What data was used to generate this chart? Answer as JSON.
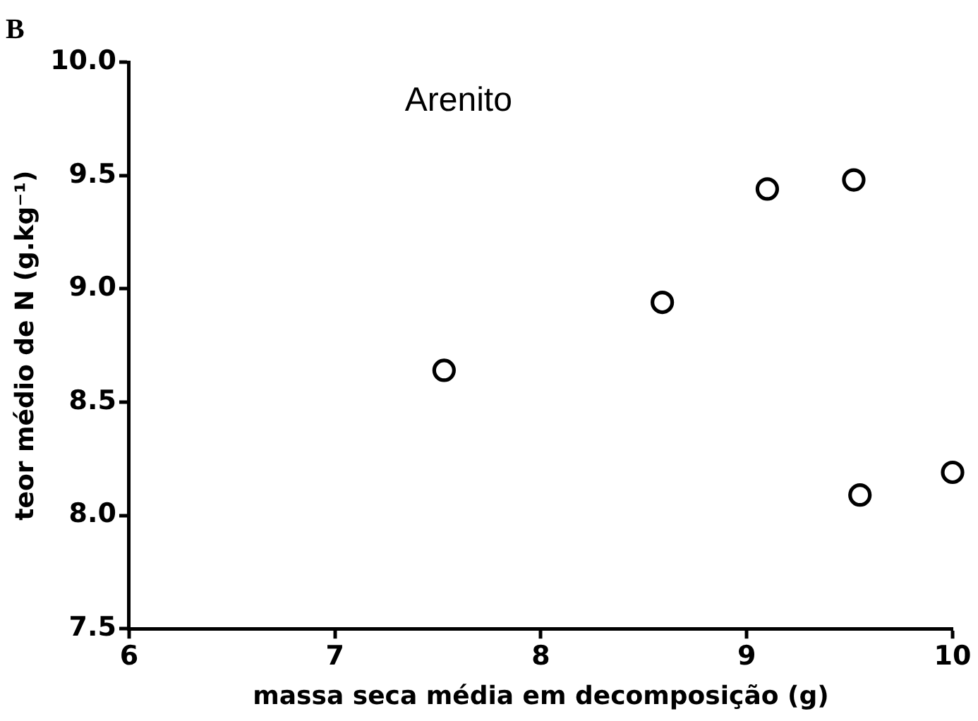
{
  "chart_data": {
    "type": "scatter",
    "title": "B",
    "xlabel": "massa seca média em decomposição (g)",
    "ylabel": "teor médio de N (g.kg⁻¹)",
    "annotations": [
      "Arenito"
    ],
    "x": [
      7.53,
      8.59,
      9.1,
      9.52,
      9.55,
      10.0
    ],
    "values": [
      8.64,
      8.94,
      9.44,
      9.48,
      8.09,
      8.19
    ],
    "color": "#000000",
    "marker": "circle",
    "grid": false,
    "legend": false,
    "xlim": [
      6,
      10
    ],
    "xticks": [
      6,
      7,
      8,
      9,
      10
    ],
    "ylim": [
      7.5,
      10.0
    ],
    "yticks": [
      {
        "value": 7.5,
        "label": "7.5"
      },
      {
        "value": 8,
        "label": "8.0"
      },
      {
        "value": 8.5,
        "label": "8.5"
      },
      {
        "value": 9,
        "label": "9.0"
      },
      {
        "value": 9.5,
        "label": "9.5"
      },
      {
        "value": 10,
        "label": "10.0"
      }
    ]
  }
}
